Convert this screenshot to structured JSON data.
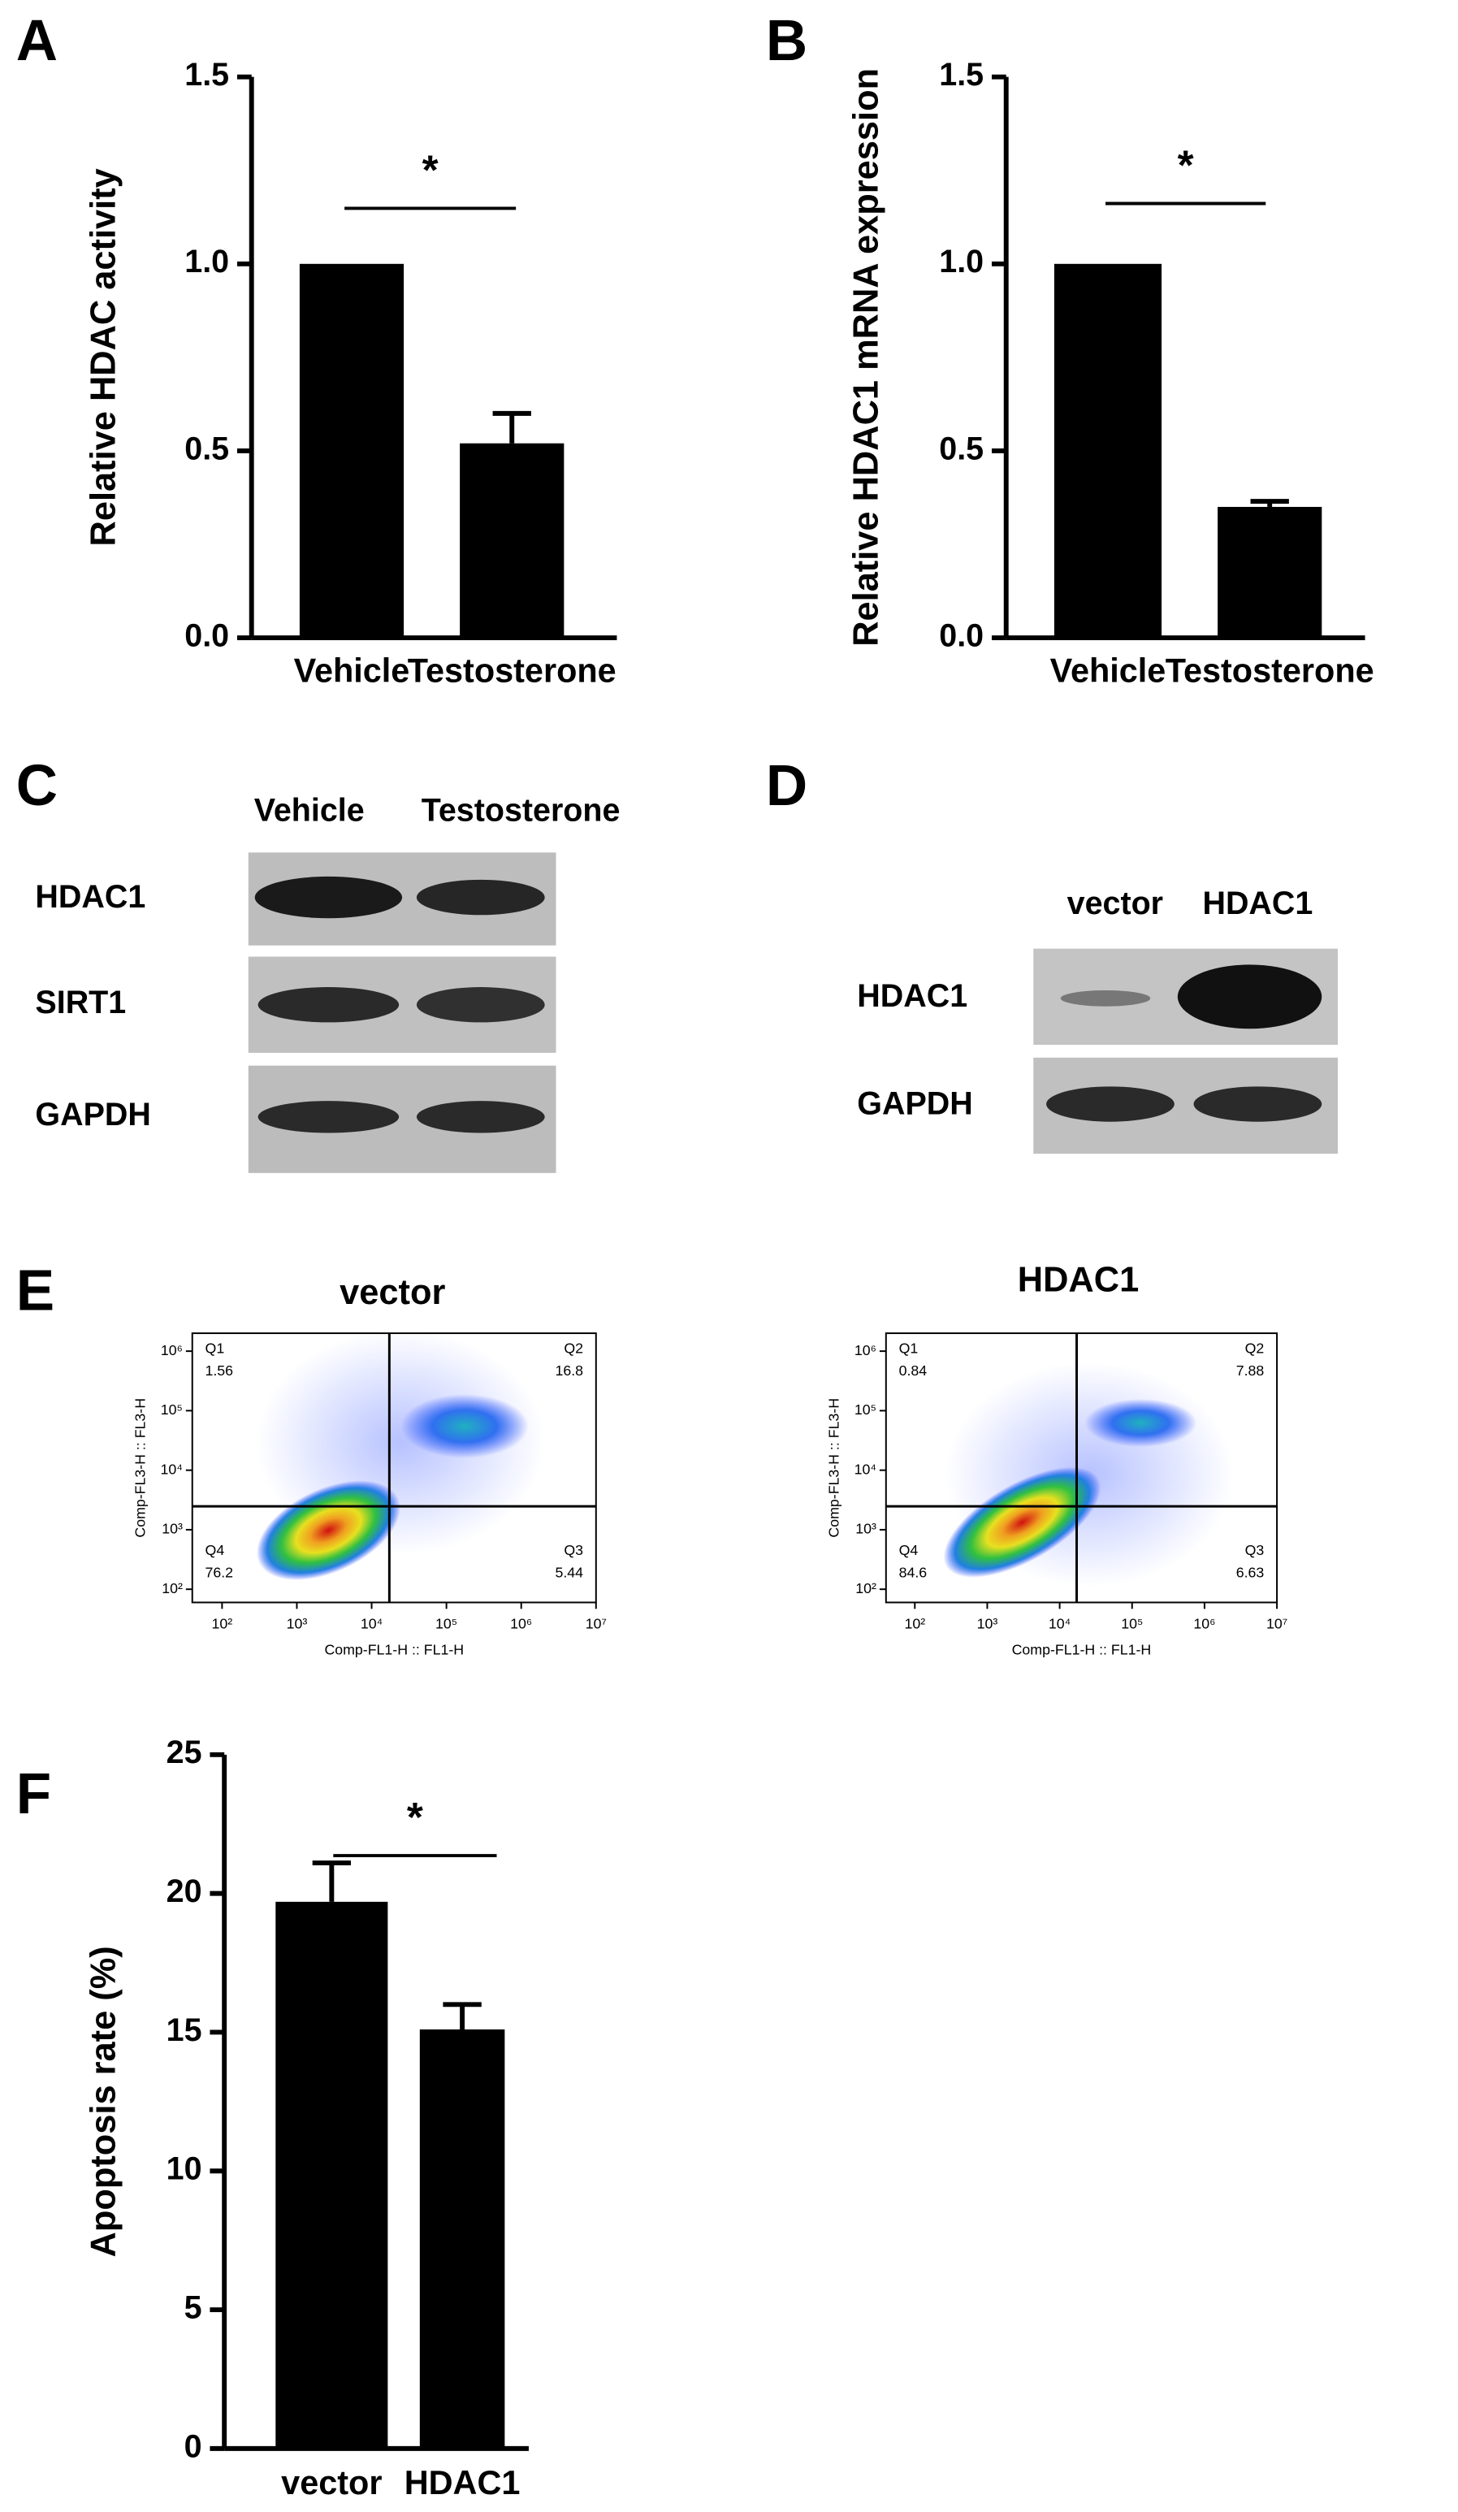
{
  "panel_labels": [
    "A",
    "B",
    "C",
    "D",
    "E",
    "F"
  ],
  "chart_data": [
    {
      "type": "bar",
      "y_label": "Relative HDAC activity",
      "categories": [
        "Vehicle",
        "Testosterone"
      ],
      "values": [
        1.0,
        0.52
      ],
      "errors": [
        null,
        0.08
      ],
      "color": "#000000",
      "annotation": "*",
      "ylim": [
        0,
        1.5
      ],
      "yticks": [
        {
          "value": 0,
          "label": "0.0"
        },
        0.5,
        {
          "value": 1,
          "label": "1.0"
        },
        1.5
      ]
    },
    {
      "type": "bar",
      "y_label": "Relative HDAC1 mRNA expression",
      "categories": [
        "Vehicle",
        "Testosterone"
      ],
      "values": [
        1.0,
        0.35
      ],
      "errors": [
        null,
        0.015
      ],
      "color": "#000000",
      "annotation": "*",
      "ylim": [
        0,
        1.5
      ],
      "yticks": [
        {
          "value": 0,
          "label": "0.0"
        },
        0.5,
        {
          "value": 1,
          "label": "1.0"
        },
        1.5
      ]
    },
    {
      "type": "bar",
      "y_label": "Apoptosis rate (%)",
      "categories": [
        "vector",
        "HDAC1"
      ],
      "values": [
        19.7,
        15.1
      ],
      "errors": [
        1.4,
        0.9
      ],
      "color": "#000000",
      "annotation": "*",
      "ylim": [
        0,
        25
      ],
      "yticks": [
        0,
        5,
        10,
        15,
        20,
        25
      ]
    }
  ],
  "blots": [
    {
      "columns": [
        "Vehicle",
        "Testosterone"
      ],
      "rows": [
        "HDAC1",
        "SIRT1",
        "GAPDH"
      ]
    },
    {
      "columns": [
        "vector",
        "HDAC1"
      ],
      "rows": [
        "HDAC1",
        "GAPDH"
      ]
    }
  ],
  "flow": [
    {
      "type": "scatter",
      "title": "vector",
      "x_label": "Comp-FL1-H :: FL1-H",
      "y_label": "Comp-FL3-H :: FL3-H",
      "log_scale": true,
      "xlim": [
        40,
        10000000
      ],
      "ylim": [
        60,
        2000000
      ],
      "xticks": [
        {
          "value": 100,
          "label": "10²"
        },
        {
          "value": 1000,
          "label": "10³"
        },
        {
          "value": 10000,
          "label": "10⁴"
        },
        {
          "value": 100000,
          "label": "10⁵"
        },
        {
          "value": 1000000,
          "label": "10⁶"
        },
        {
          "value": 10000000,
          "label": "10⁷"
        }
      ],
      "yticks": [
        {
          "value": 100,
          "label": "10²"
        },
        {
          "value": 1000,
          "label": "10³"
        },
        {
          "value": 10000,
          "label": "10⁴"
        },
        {
          "value": 100000,
          "label": "10⁵"
        },
        {
          "value": 1000000,
          "label": "10⁶"
        }
      ],
      "quadrants": [
        {
          "name": "Q1",
          "value": 1.56
        },
        {
          "name": "Q2",
          "value": 16.8
        },
        {
          "name": "Q3",
          "value": 5.44
        },
        {
          "name": "Q4",
          "value": 76.2
        }
      ]
    },
    {
      "type": "scatter",
      "title": "HDAC1",
      "x_label": "Comp-FL1-H :: FL1-H",
      "y_label": "Comp-FL3-H :: FL3-H",
      "log_scale": true,
      "xlim": [
        40,
        10000000
      ],
      "ylim": [
        60,
        2000000
      ],
      "xticks": [
        {
          "value": 100,
          "label": "10²"
        },
        {
          "value": 1000,
          "label": "10³"
        },
        {
          "value": 10000,
          "label": "10⁴"
        },
        {
          "value": 100000,
          "label": "10⁵"
        },
        {
          "value": 1000000,
          "label": "10⁶"
        },
        {
          "value": 10000000,
          "label": "10⁷"
        }
      ],
      "yticks": [
        {
          "value": 100,
          "label": "10²"
        },
        {
          "value": 1000,
          "label": "10³"
        },
        {
          "value": 10000,
          "label": "10⁴"
        },
        {
          "value": 100000,
          "label": "10⁵"
        },
        {
          "value": 1000000,
          "label": "10⁶"
        }
      ],
      "quadrants": [
        {
          "name": "Q1",
          "value": 0.84
        },
        {
          "name": "Q2",
          "value": 7.88
        },
        {
          "name": "Q3",
          "value": 6.63
        },
        {
          "name": "Q4",
          "value": 84.6
        }
      ]
    }
  ]
}
